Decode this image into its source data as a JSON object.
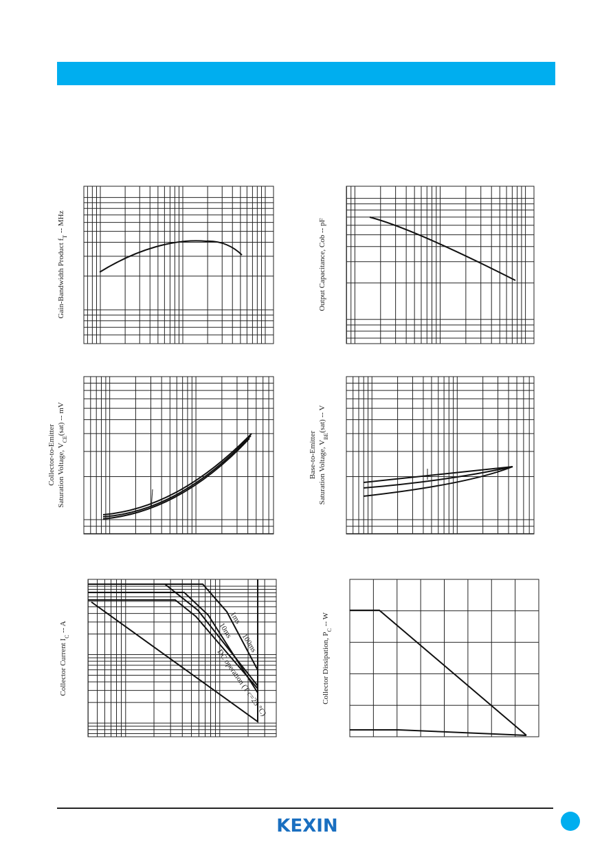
{
  "charts": [
    {
      "label": {
        "pre": "Gain-Bandwidth Product  f",
        "sub": "T",
        "post": " --  MHz"
      }
    },
    {
      "label": {
        "pre": "Output Capacitance, Cob  --  pF"
      }
    },
    {
      "label": {
        "line1": "Collector-to-Emitter",
        "pre": "Saturation Voltage, V",
        "sub": "CE",
        "post": "(sat)  --  mV"
      }
    },
    {
      "label": {
        "line1": "Base-to-Emitter",
        "pre": "Saturation Voltage, V",
        "sub": "BE",
        "post": "(sat)  --  V"
      }
    },
    {
      "label": {
        "pre": "Collector Current  I",
        "sub": "C",
        "post": "  --  A"
      },
      "annotations": [
        "1ms",
        "10ms",
        "100ms",
        "DC operation (T c=25 °C)"
      ]
    },
    {
      "label": {
        "pre": "Collector Dissipation, P",
        "sub": "C",
        "post": "  --  W"
      }
    }
  ],
  "footer": {
    "logo": "KEXIN"
  }
}
